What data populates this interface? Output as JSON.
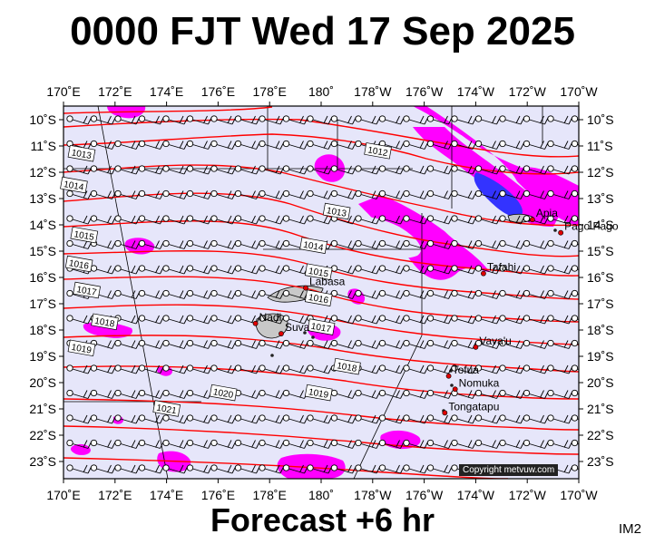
{
  "header": {
    "title": "0000 FJT Wed 17 Sep 2025"
  },
  "footer": {
    "label": "Forecast +6 hr",
    "image_code": "IM2"
  },
  "credit": "Copyright metvuw.com",
  "map": {
    "lon_labels": [
      "170˚E",
      "172˚E",
      "174˚E",
      "176˚E",
      "178˚E",
      "180˚",
      "178˚W",
      "176˚W",
      "174˚W",
      "172˚W",
      "170˚W"
    ],
    "lat_labels": [
      "10˚S",
      "11˚S",
      "12˚S",
      "13˚S",
      "14˚S",
      "15˚S",
      "16˚S",
      "17˚S",
      "18˚S",
      "19˚S",
      "20˚S",
      "21˚S",
      "22˚S",
      "23˚S"
    ],
    "colors": {
      "ocean": "#e6e6fa",
      "isobar": "#ff0000",
      "rain_light": "#ff00ff",
      "rain_heavy": "#3333ff",
      "land": "#c8c8c8"
    },
    "isobars": [
      {
        "label": "1012",
        "lon": 182.2,
        "lat": -11.2
      },
      {
        "label": "1013",
        "lon": 170.7,
        "lat": -11.3
      },
      {
        "label": "1013",
        "lon": 180.6,
        "lat": -13.5
      },
      {
        "label": "1014",
        "lon": 170.4,
        "lat": -12.5
      },
      {
        "label": "1014",
        "lon": 179.7,
        "lat": -14.8
      },
      {
        "label": "1015",
        "lon": 170.8,
        "lat": -14.4
      },
      {
        "label": "1015",
        "lon": 179.9,
        "lat": -15.8
      },
      {
        "label": "1016",
        "lon": 170.6,
        "lat": -15.5
      },
      {
        "label": "1016",
        "lon": 179.9,
        "lat": -16.8
      },
      {
        "label": "1017",
        "lon": 170.9,
        "lat": -16.5
      },
      {
        "label": "1017",
        "lon": 180.0,
        "lat": -17.9
      },
      {
        "label": "1018",
        "lon": 171.6,
        "lat": -17.7
      },
      {
        "label": "1018",
        "lon": 181.0,
        "lat": -19.4
      },
      {
        "label": "1019",
        "lon": 170.7,
        "lat": -18.7
      },
      {
        "label": "1019",
        "lon": 179.9,
        "lat": -20.4
      },
      {
        "label": "1020",
        "lon": 176.2,
        "lat": -20.4
      },
      {
        "label": "1021",
        "lon": 174.0,
        "lat": -21.0
      }
    ],
    "places": [
      {
        "name": "Apia",
        "lon": -171.8,
        "lat": -13.8
      },
      {
        "name": "Pago Pago",
        "lon": -170.7,
        "lat": -14.3
      },
      {
        "name": "Tafahi",
        "lon": -173.7,
        "lat": -15.85
      },
      {
        "name": "Labasa",
        "lon": 179.4,
        "lat": -16.4
      },
      {
        "name": "Nadi",
        "lon": 177.45,
        "lat": -17.75
      },
      {
        "name": "Suva",
        "lon": 178.45,
        "lat": -18.14
      },
      {
        "name": "Vava'u",
        "lon": -174.0,
        "lat": -18.65
      },
      {
        "name": "Tofua",
        "lon": -175.05,
        "lat": -19.75
      },
      {
        "name": "Nomuka",
        "lon": -174.8,
        "lat": -20.25
      },
      {
        "name": "Tongatapu",
        "lon": -175.2,
        "lat": -21.15
      }
    ]
  }
}
